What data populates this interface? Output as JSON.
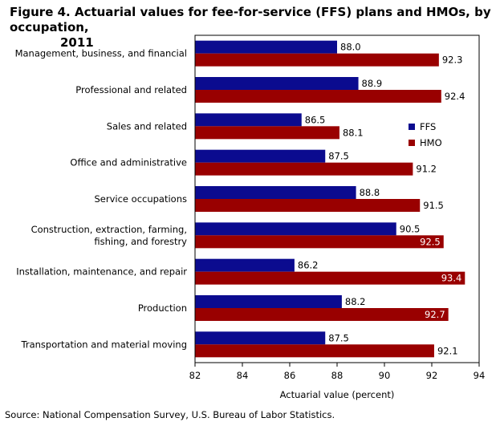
{
  "title_line1": "Figure 4. Actuarial values for fee-for-service (FFS) plans and HMOs, by occupation,",
  "title_line2": "2011",
  "source": "Source: National Compensation Survey, U.S. Bureau of Labor Statistics.",
  "chart_data": {
    "type": "bar",
    "orientation": "horizontal",
    "categories": [
      [
        "Management, business, and financial"
      ],
      [
        "Professional and related"
      ],
      [
        "Sales and related"
      ],
      [
        "Office and administrative"
      ],
      [
        "Service occupations"
      ],
      [
        "Construction, extraction, farming,",
        "fishing, and forestry"
      ],
      [
        "Installation, maintenance, and repair"
      ],
      [
        "Production"
      ],
      [
        "Transportation and material moving"
      ]
    ],
    "series": [
      {
        "name": "FFS",
        "color": "#0b0b8f",
        "values": [
          88.0,
          88.9,
          86.5,
          87.5,
          88.8,
          90.5,
          86.2,
          88.2,
          87.5
        ],
        "labels": [
          "88.0",
          "88.9",
          "86.5",
          "87.5",
          "88.8",
          "90.5",
          "86.2",
          "88.2",
          "87.5"
        ]
      },
      {
        "name": "HMO",
        "color": "#990000",
        "values": [
          92.3,
          92.4,
          88.1,
          91.2,
          91.5,
          92.5,
          93.4,
          92.7,
          92.1
        ],
        "labels": [
          "92.3",
          "92.4",
          "88.1",
          "91.2",
          "91.5",
          "92.5",
          "93.4",
          "92.7",
          "92.1"
        ]
      }
    ],
    "xlabel": "Actuarial value (percent)",
    "xlim": [
      82,
      94
    ],
    "xticks": [
      "82",
      "84",
      "86",
      "88",
      "90",
      "92",
      "94"
    ],
    "grid": false,
    "legend_position": "right"
  }
}
